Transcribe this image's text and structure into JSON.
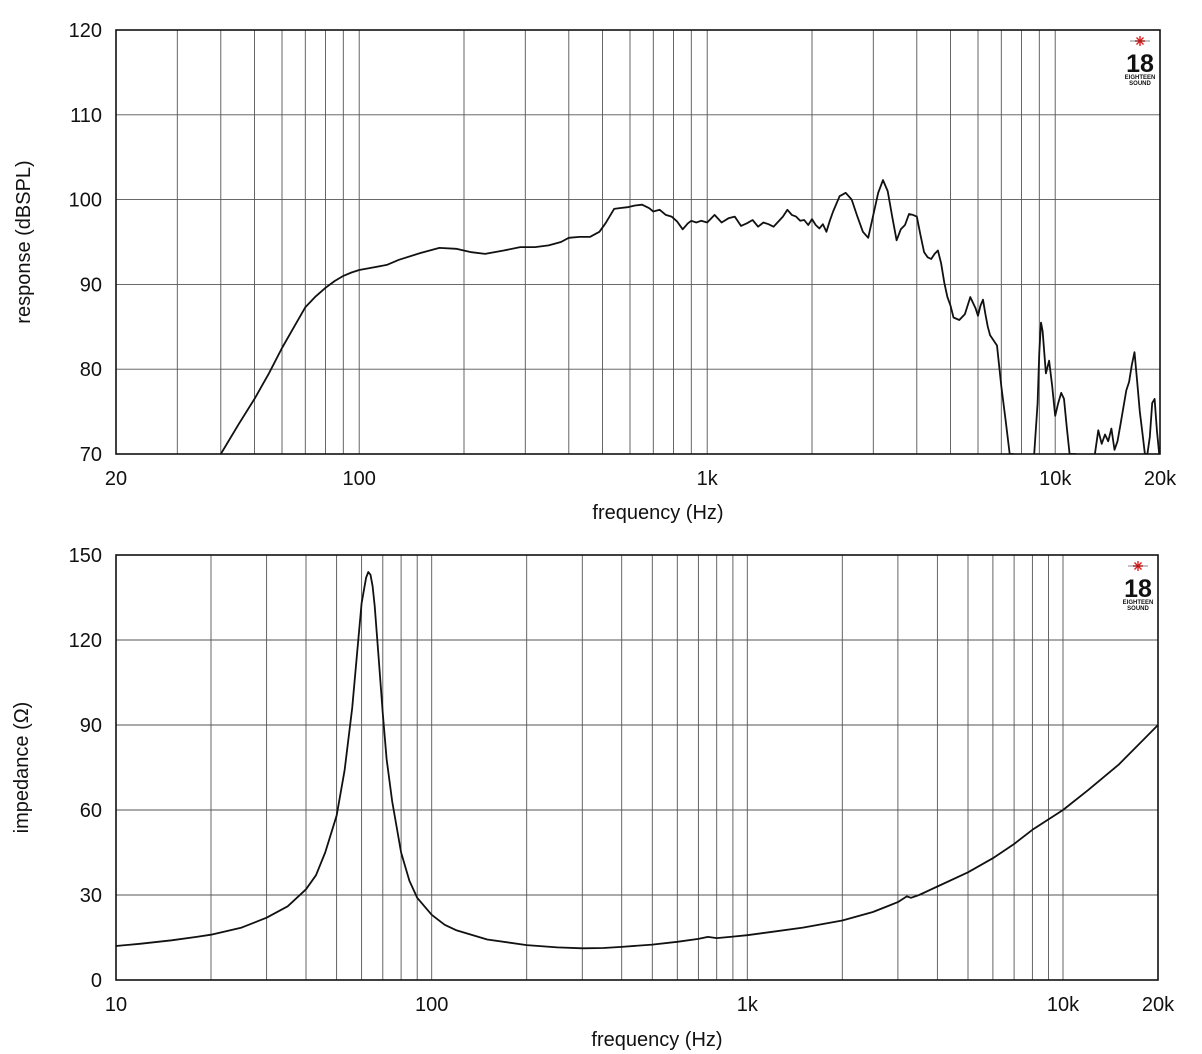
{
  "chart_data": [
    {
      "type": "line",
      "xscale": "log",
      "xlim": [
        20,
        20000
      ],
      "ylim": [
        70,
        120
      ],
      "xlabel": "frequency (Hz)",
      "ylabel": "response (dBSPL)",
      "grid": true,
      "xticks": [
        {
          "value": 20,
          "label": "20"
        },
        {
          "value": 100,
          "label": "100"
        },
        {
          "value": 1000,
          "label": "1k"
        },
        {
          "value": 10000,
          "label": "10k"
        },
        {
          "value": 20000,
          "label": "20k"
        }
      ],
      "yticks": [
        {
          "value": 70,
          "label": "70"
        },
        {
          "value": 80,
          "label": "80"
        },
        {
          "value": 90,
          "label": "90"
        },
        {
          "value": 100,
          "label": "100"
        },
        {
          "value": 110,
          "label": "110"
        },
        {
          "value": 120,
          "label": "120"
        }
      ],
      "logo": {
        "number": "18",
        "small_lines": [
          "EIGHTEEN",
          "SOUND"
        ],
        "star_color": "#e0201f"
      },
      "series": [
        {
          "x": [
            40,
            45,
            50,
            55,
            60,
            65,
            70,
            75,
            80,
            85,
            90,
            95,
            100,
            110,
            120,
            130,
            150,
            170,
            190,
            210,
            230,
            260,
            290,
            320,
            350,
            380,
            400,
            430,
            460,
            490,
            510,
            540,
            560,
            590,
            620,
            650,
            680,
            700,
            730,
            760,
            790,
            820,
            850,
            880,
            900,
            930,
            960,
            1000,
            1050,
            1100,
            1150,
            1200,
            1250,
            1300,
            1350,
            1400,
            1450,
            1500,
            1550,
            1600,
            1650,
            1700,
            1750,
            1800,
            1850,
            1900,
            1950,
            2000,
            2050,
            2100,
            2150,
            2200,
            2250,
            2300,
            2400,
            2500,
            2600,
            2700,
            2800,
            2900,
            3000,
            3100,
            3200,
            3300,
            3400,
            3500,
            3600,
            3700,
            3800,
            3900,
            4000,
            4100,
            4200,
            4300,
            4400,
            4500,
            4600,
            4700,
            4800,
            4900,
            5000,
            5100,
            5300,
            5500,
            5700,
            5900,
            6000,
            6100,
            6200,
            6300,
            6400,
            6500,
            6800,
            7000,
            7200,
            7400,
            7600
          ],
          "y": [
            70,
            73.5,
            76.5,
            79.5,
            82.5,
            85,
            87.3,
            88.6,
            89.6,
            90.4,
            91,
            91.4,
            91.7,
            92,
            92.3,
            92.9,
            93.7,
            94.3,
            94.2,
            93.8,
            93.6,
            94.0,
            94.4,
            94.4,
            94.6,
            95.0,
            95.5,
            95.6,
            95.6,
            96.2,
            97.2,
            98.9,
            99.0,
            99.1,
            99.3,
            99.4,
            99.0,
            98.6,
            98.8,
            98.2,
            98.0,
            97.4,
            96.5,
            97.2,
            97.5,
            97.3,
            97.5,
            97.3,
            98.2,
            97.3,
            97.8,
            98.0,
            96.9,
            97.2,
            97.6,
            96.8,
            97.3,
            97.1,
            96.8,
            97.4,
            98.0,
            98.8,
            98.2,
            98.0,
            97.5,
            97.6,
            97.0,
            97.7,
            97.0,
            96.6,
            97.1,
            96.2,
            97.5,
            98.6,
            100.4,
            100.8,
            100.0,
            98.0,
            96.2,
            95.5,
            98.2,
            100.8,
            102.3,
            101.0,
            98.0,
            95.2,
            96.5,
            97.0,
            98.3,
            98.2,
            98.0,
            95.8,
            93.8,
            93.2,
            93.0,
            93.6,
            94.0,
            92.5,
            90.2,
            88.5,
            87.5,
            86.1,
            85.8,
            86.5,
            88.5,
            87.2,
            86.3,
            87.5,
            88.2,
            86.5,
            85.0,
            84.0,
            82.8,
            78.0,
            74.0,
            70.0,
            70.0
          ]
        },
        {
          "x": [
            8700,
            8900,
            9000,
            9100,
            9200,
            9400,
            9600,
            9800,
            10000,
            10200,
            10400,
            10600,
            10800,
            11000,
            11200,
            11500
          ],
          "y": [
            70,
            76,
            82,
            85.5,
            84.5,
            79.5,
            81,
            78,
            74.5,
            76,
            77.2,
            76.5,
            73,
            70,
            70,
            70
          ]
        },
        {
          "x": [
            13000,
            13300,
            13600,
            13900,
            14200,
            14500,
            14800,
            15100,
            15400,
            15700,
            16000,
            16300,
            16600,
            16900,
            17200,
            17500,
            17800,
            18100,
            18400,
            18700,
            19000,
            19300,
            19600,
            19900
          ],
          "y": [
            70,
            72.8,
            71.2,
            72.3,
            71.5,
            73,
            70.5,
            71.5,
            73.5,
            75.5,
            77.5,
            78.5,
            80.5,
            82,
            78.5,
            75,
            72.5,
            70,
            70,
            72,
            76,
            76.5,
            72.8,
            70
          ]
        }
      ]
    },
    {
      "type": "line",
      "xscale": "log",
      "xlim": [
        10,
        20000
      ],
      "ylim": [
        0,
        150
      ],
      "xlabel": "frequency (Hz)",
      "ylabel": "impedance (Ω)",
      "grid": true,
      "xticks": [
        {
          "value": 10,
          "label": "10"
        },
        {
          "value": 100,
          "label": "100"
        },
        {
          "value": 1000,
          "label": "1k"
        },
        {
          "value": 10000,
          "label": "10k"
        },
        {
          "value": 20000,
          "label": "20k"
        }
      ],
      "yticks": [
        {
          "value": 0,
          "label": "0"
        },
        {
          "value": 30,
          "label": "30"
        },
        {
          "value": 60,
          "label": "60"
        },
        {
          "value": 90,
          "label": "90"
        },
        {
          "value": 120,
          "label": "120"
        },
        {
          "value": 150,
          "label": "150"
        }
      ],
      "logo": {
        "number": "18",
        "small_lines": [
          "EIGHTEEN",
          "SOUND"
        ],
        "star_color": "#e0201f"
      },
      "series": [
        {
          "x": [
            10,
            12,
            15,
            18,
            20,
            25,
            30,
            35,
            40,
            43,
            46,
            50,
            53,
            56,
            58,
            60,
            62,
            63,
            64,
            65,
            66,
            68,
            70,
            72,
            75,
            80,
            85,
            90,
            100,
            110,
            120,
            150,
            200,
            250,
            300,
            350,
            400,
            500,
            600,
            700,
            750,
            800,
            900,
            1000,
            1200,
            1500,
            2000,
            2500,
            3000,
            3200,
            3300,
            3500,
            4000,
            5000,
            6000,
            7000,
            8000,
            10000,
            12000,
            15000,
            20000
          ],
          "y": [
            12,
            12.8,
            14,
            15.2,
            16,
            18.5,
            22,
            26,
            32,
            37,
            45,
            58,
            74,
            96,
            115,
            133,
            142,
            144,
            143,
            139,
            132,
            113,
            94,
            78,
            63,
            45,
            35,
            29,
            23,
            19.5,
            17.5,
            14.3,
            12.3,
            11.5,
            11.2,
            11.3,
            11.7,
            12.5,
            13.5,
            14.5,
            15.2,
            14.8,
            15.3,
            15.8,
            17,
            18.5,
            21,
            24,
            27.5,
            29.5,
            29,
            30,
            33,
            38,
            43,
            48,
            53,
            60,
            67,
            76,
            90
          ]
        }
      ]
    }
  ]
}
